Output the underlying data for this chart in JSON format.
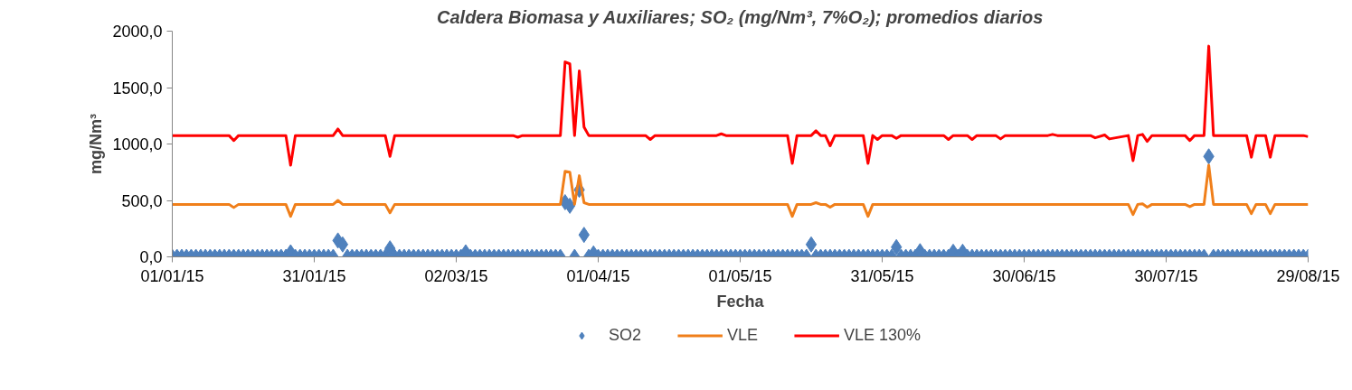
{
  "chart_data": {
    "type": "scatter",
    "title": "Caldera Biomasa y Auxiliares; SO₂ (mg/Nm³, 7%O₂); promedios diarios",
    "xlabel": "Fecha",
    "ylabel": "mg/Nm³",
    "x": [
      "2015-01-01",
      "2015-01-02",
      "2015-01-03",
      "2015-01-04",
      "2015-01-05",
      "2015-01-06",
      "2015-01-07",
      "2015-01-08",
      "2015-01-09",
      "2015-01-10",
      "2015-01-11",
      "2015-01-12",
      "2015-01-13",
      "2015-01-14",
      "2015-01-15",
      "2015-01-16",
      "2015-01-17",
      "2015-01-18",
      "2015-01-19",
      "2015-01-20",
      "2015-01-21",
      "2015-01-22",
      "2015-01-23",
      "2015-01-24",
      "2015-01-25",
      "2015-01-26",
      "2015-01-27",
      "2015-01-28",
      "2015-01-29",
      "2015-01-30",
      "2015-01-31",
      "2015-02-01",
      "2015-02-02",
      "2015-02-03",
      "2015-02-04",
      "2015-02-05",
      "2015-02-06",
      "2015-02-07",
      "2015-02-08",
      "2015-02-09",
      "2015-02-10",
      "2015-02-11",
      "2015-02-12",
      "2015-02-13",
      "2015-02-14",
      "2015-02-15",
      "2015-02-16",
      "2015-02-17",
      "2015-02-18",
      "2015-02-19",
      "2015-02-20",
      "2015-02-21",
      "2015-02-22",
      "2015-02-23",
      "2015-02-24",
      "2015-02-25",
      "2015-02-26",
      "2015-02-27",
      "2015-02-28",
      "2015-03-01",
      "2015-03-02",
      "2015-03-03",
      "2015-03-04",
      "2015-03-05",
      "2015-03-06",
      "2015-03-07",
      "2015-03-08",
      "2015-03-09",
      "2015-03-10",
      "2015-03-11",
      "2015-03-12",
      "2015-03-13",
      "2015-03-14",
      "2015-03-15",
      "2015-03-16",
      "2015-03-17",
      "2015-03-18",
      "2015-03-19",
      "2015-03-20",
      "2015-03-21",
      "2015-03-22",
      "2015-03-23",
      "2015-03-24",
      "2015-03-25",
      "2015-03-26",
      "2015-03-27",
      "2015-03-28",
      "2015-03-29",
      "2015-03-30",
      "2015-03-31",
      "2015-04-01",
      "2015-04-02",
      "2015-04-03",
      "2015-04-04",
      "2015-04-05",
      "2015-04-06",
      "2015-04-07",
      "2015-04-08",
      "2015-04-09",
      "2015-04-10",
      "2015-04-11",
      "2015-04-12",
      "2015-04-13",
      "2015-04-14",
      "2015-04-15",
      "2015-04-16",
      "2015-04-17",
      "2015-04-18",
      "2015-04-19",
      "2015-04-20",
      "2015-04-21",
      "2015-04-22",
      "2015-04-23",
      "2015-04-24",
      "2015-04-25",
      "2015-04-26",
      "2015-04-27",
      "2015-04-28",
      "2015-04-29",
      "2015-04-30",
      "2015-05-01",
      "2015-05-02",
      "2015-05-03",
      "2015-05-04",
      "2015-05-05",
      "2015-05-06",
      "2015-05-07",
      "2015-05-08",
      "2015-05-09",
      "2015-05-10",
      "2015-05-11",
      "2015-05-12",
      "2015-05-13",
      "2015-05-14",
      "2015-05-15",
      "2015-05-16",
      "2015-05-17",
      "2015-05-18",
      "2015-05-19",
      "2015-05-20",
      "2015-05-21",
      "2015-05-22",
      "2015-05-23",
      "2015-05-24",
      "2015-05-25",
      "2015-05-26",
      "2015-05-27",
      "2015-05-28",
      "2015-05-29",
      "2015-05-30",
      "2015-05-31",
      "2015-06-01",
      "2015-06-02",
      "2015-06-03",
      "2015-06-04",
      "2015-06-05",
      "2015-06-06",
      "2015-06-07",
      "2015-06-08",
      "2015-06-09",
      "2015-06-10",
      "2015-06-11",
      "2015-06-12",
      "2015-06-13",
      "2015-06-14",
      "2015-06-15",
      "2015-06-16",
      "2015-06-17",
      "2015-06-18",
      "2015-06-19",
      "2015-06-20",
      "2015-06-21",
      "2015-06-22",
      "2015-06-23",
      "2015-06-24",
      "2015-06-25",
      "2015-06-26",
      "2015-06-27",
      "2015-06-28",
      "2015-06-29",
      "2015-06-30",
      "2015-07-01",
      "2015-07-02",
      "2015-07-03",
      "2015-07-04",
      "2015-07-05",
      "2015-07-06",
      "2015-07-07",
      "2015-07-08",
      "2015-07-09",
      "2015-07-10",
      "2015-07-11",
      "2015-07-12",
      "2015-07-13",
      "2015-07-14",
      "2015-07-15",
      "2015-07-16",
      "2015-07-17",
      "2015-07-18",
      "2015-07-19",
      "2015-07-20",
      "2015-07-21",
      "2015-07-22",
      "2015-07-23",
      "2015-07-24",
      "2015-07-25",
      "2015-07-26",
      "2015-07-27",
      "2015-07-28",
      "2015-07-29",
      "2015-07-30",
      "2015-07-31",
      "2015-08-01",
      "2015-08-02",
      "2015-08-03",
      "2015-08-04",
      "2015-08-05",
      "2015-08-06",
      "2015-08-07",
      "2015-08-08",
      "2015-08-09",
      "2015-08-10",
      "2015-08-11",
      "2015-08-12",
      "2015-08-13",
      "2015-08-14",
      "2015-08-15",
      "2015-08-16",
      "2015-08-17",
      "2015-08-18",
      "2015-08-19",
      "2015-08-20",
      "2015-08-21",
      "2015-08-22",
      "2015-08-23",
      "2015-08-24",
      "2015-08-25",
      "2015-08-26",
      "2015-08-27",
      "2015-08-28",
      "2015-08-29"
    ],
    "series": [
      {
        "name": "SO2",
        "marker": "diamond",
        "color": "#4f81bd",
        "values": [
          0,
          0,
          0,
          0,
          0,
          0,
          0,
          0,
          0,
          0,
          0,
          0,
          0,
          0,
          0,
          0,
          0,
          0,
          0,
          0,
          0,
          0,
          0,
          0,
          0,
          40,
          0,
          0,
          0,
          0,
          0,
          0,
          0,
          0,
          0,
          145,
          110,
          0,
          0,
          0,
          0,
          0,
          0,
          0,
          0,
          0,
          75,
          0,
          0,
          0,
          0,
          0,
          0,
          0,
          0,
          0,
          0,
          0,
          0,
          0,
          0,
          0,
          40,
          0,
          0,
          0,
          0,
          0,
          0,
          0,
          0,
          0,
          0,
          0,
          0,
          0,
          0,
          0,
          0,
          0,
          0,
          0,
          0,
          484,
          453,
          0,
          594,
          195,
          0,
          30,
          0,
          0,
          0,
          0,
          0,
          0,
          0,
          0,
          0,
          0,
          0,
          0,
          0,
          0,
          0,
          0,
          0,
          0,
          0,
          0,
          0,
          0,
          0,
          0,
          0,
          0,
          0,
          0,
          0,
          0,
          0,
          0,
          0,
          0,
          0,
          0,
          0,
          0,
          0,
          0,
          0,
          0,
          0,
          0,
          0,
          110,
          0,
          0,
          0,
          0,
          0,
          0,
          0,
          0,
          0,
          0,
          0,
          0,
          0,
          0,
          0,
          0,
          0,
          86,
          0,
          0,
          0,
          0,
          50,
          0,
          0,
          0,
          0,
          0,
          0,
          45,
          0,
          45,
          0,
          0,
          0,
          0,
          0,
          0,
          0,
          0,
          0,
          0,
          0,
          0,
          0,
          0,
          0,
          0,
          0,
          0,
          0,
          0,
          0,
          0,
          0,
          0,
          0,
          0,
          0,
          0,
          0,
          0,
          0,
          0,
          0,
          0,
          0,
          0,
          0,
          0,
          0,
          0,
          0,
          0,
          0,
          0,
          0,
          0,
          0,
          0,
          0,
          0,
          0,
          890,
          0,
          0,
          0,
          0,
          0,
          0,
          0,
          0,
          0,
          0,
          0,
          0,
          0,
          0,
          0,
          0,
          0,
          0,
          0,
          0,
          0
        ]
      },
      {
        "name": "VLE",
        "type": "line",
        "color": "#f07f1a",
        "x": [
          "2015-01-01",
          "2015-01-13",
          "2015-01-14",
          "2015-01-15",
          "2015-01-25",
          "2015-01-26",
          "2015-01-27",
          "2015-02-04",
          "2015-02-05",
          "2015-02-06",
          "2015-02-15",
          "2015-02-16",
          "2015-02-17",
          "2015-03-24",
          "2015-03-25",
          "2015-03-26",
          "2015-03-27",
          "2015-03-28",
          "2015-03-29",
          "2015-03-30",
          "2015-05-11",
          "2015-05-12",
          "2015-05-13",
          "2015-05-16",
          "2015-05-17",
          "2015-05-18",
          "2015-05-19",
          "2015-05-20",
          "2015-05-21",
          "2015-05-27",
          "2015-05-28",
          "2015-05-29",
          "2015-07-22",
          "2015-07-23",
          "2015-07-24",
          "2015-07-25",
          "2015-07-26",
          "2015-07-27",
          "2015-08-03",
          "2015-08-04",
          "2015-08-05",
          "2015-08-07",
          "2015-08-08",
          "2015-08-09",
          "2015-08-16",
          "2015-08-17",
          "2015-08-18",
          "2015-08-20",
          "2015-08-21",
          "2015-08-22",
          "2015-08-29"
        ],
        "values": [
          465,
          465,
          437,
          465,
          465,
          359,
          465,
          465,
          500,
          465,
          465,
          390,
          465,
          465,
          758,
          750,
          465,
          719,
          480,
          465,
          465,
          359,
          465,
          465,
          480,
          465,
          465,
          440,
          465,
          465,
          359,
          465,
          465,
          375,
          465,
          470,
          440,
          465,
          465,
          445,
          465,
          465,
          812,
          465,
          465,
          383,
          465,
          465,
          383,
          465,
          465
        ]
      },
      {
        "name": "VLE 130%",
        "type": "line",
        "color": "#ff0000",
        "x": [
          "2015-01-01",
          "2015-01-13",
          "2015-01-14",
          "2015-01-15",
          "2015-01-25",
          "2015-01-26",
          "2015-01-27",
          "2015-02-04",
          "2015-02-05",
          "2015-02-06",
          "2015-02-15",
          "2015-02-16",
          "2015-02-17",
          "2015-03-14",
          "2015-03-15",
          "2015-03-16",
          "2015-03-24",
          "2015-03-25",
          "2015-03-26",
          "2015-03-27",
          "2015-03-28",
          "2015-03-29",
          "2015-03-30",
          "2015-04-11",
          "2015-04-12",
          "2015-04-13",
          "2015-04-26",
          "2015-04-27",
          "2015-04-28",
          "2015-05-11",
          "2015-05-12",
          "2015-05-13",
          "2015-05-16",
          "2015-05-17",
          "2015-05-18",
          "2015-05-19",
          "2015-05-20",
          "2015-05-21",
          "2015-05-27",
          "2015-05-28",
          "2015-05-29",
          "2015-05-30",
          "2015-05-31",
          "2015-06-02",
          "2015-06-03",
          "2015-06-04",
          "2015-06-13",
          "2015-06-14",
          "2015-06-15",
          "2015-06-18",
          "2015-06-19",
          "2015-06-20",
          "2015-06-24",
          "2015-06-25",
          "2015-06-26",
          "2015-07-05",
          "2015-07-06",
          "2015-07-07",
          "2015-07-14",
          "2015-07-15",
          "2015-07-17",
          "2015-07-18",
          "2015-07-22",
          "2015-07-23",
          "2015-07-24",
          "2015-07-25",
          "2015-07-26",
          "2015-07-27",
          "2015-08-03",
          "2015-08-04",
          "2015-08-05",
          "2015-08-07",
          "2015-08-08",
          "2015-08-09",
          "2015-08-16",
          "2015-08-17",
          "2015-08-18",
          "2015-08-20",
          "2015-08-21",
          "2015-08-22",
          "2015-08-28",
          "2015-08-29"
        ],
        "values": [
          1075,
          1075,
          1030,
          1075,
          1075,
          812,
          1075,
          1075,
          1133,
          1075,
          1075,
          890,
          1075,
          1075,
          1060,
          1075,
          1075,
          1727,
          1710,
          1075,
          1648,
          1150,
          1075,
          1075,
          1040,
          1075,
          1075,
          1090,
          1075,
          1075,
          828,
          1075,
          1075,
          1117,
          1075,
          1075,
          984,
          1075,
          1075,
          828,
          1075,
          1040,
          1075,
          1075,
          1050,
          1075,
          1075,
          1040,
          1075,
          1075,
          1040,
          1075,
          1075,
          1045,
          1075,
          1075,
          1085,
          1075,
          1075,
          1055,
          1080,
          1045,
          1075,
          852,
          1075,
          1085,
          1023,
          1075,
          1075,
          1030,
          1075,
          1075,
          1867,
          1075,
          1075,
          883,
          1075,
          1075,
          883,
          1075,
          1075,
          1065
        ]
      }
    ],
    "xlim": [
      "2015-01-01",
      "2015-08-29"
    ],
    "xticks": [
      {
        "value": "2015-01-01",
        "label": "01/01/15"
      },
      {
        "value": "2015-01-31",
        "label": "31/01/15"
      },
      {
        "value": "2015-03-02",
        "label": "02/03/15"
      },
      {
        "value": "2015-04-01",
        "label": "01/04/15"
      },
      {
        "value": "2015-05-01",
        "label": "01/05/15"
      },
      {
        "value": "2015-05-31",
        "label": "31/05/15"
      },
      {
        "value": "2015-06-30",
        "label": "30/06/15"
      },
      {
        "value": "2015-07-30",
        "label": "30/07/15"
      },
      {
        "value": "2015-08-29",
        "label": "29/08/15"
      }
    ],
    "ylim": [
      0,
      2000
    ],
    "yticks": [
      {
        "value": 0,
        "label": "0,0"
      },
      {
        "value": 500,
        "label": "500,0"
      },
      {
        "value": 1000,
        "label": "1000,0"
      },
      {
        "value": 1500,
        "label": "1500,0"
      },
      {
        "value": 2000,
        "label": "2000,0"
      }
    ],
    "legend": "bottom"
  }
}
